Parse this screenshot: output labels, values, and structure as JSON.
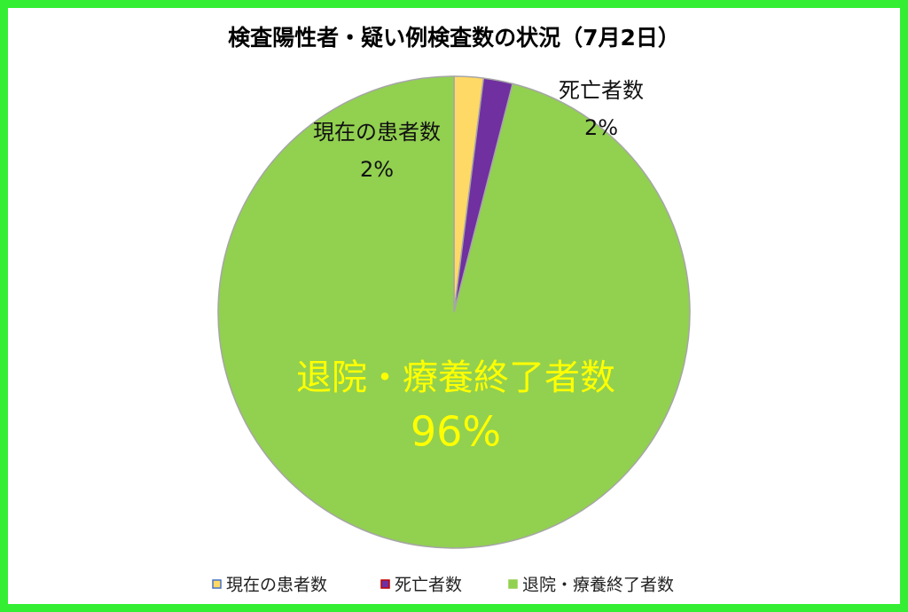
{
  "chart_data": {
    "type": "pie",
    "title": "検査陽性者・疑い例検査数の状況（7月2日）",
    "categories": [
      "現在の患者数",
      "死亡者数",
      "退院・療養終了者数"
    ],
    "values": [
      2,
      2,
      96
    ],
    "value_labels": [
      "2%",
      "2%",
      "96%"
    ],
    "colors": [
      "#ffd966",
      "#7030a0",
      "#92d050"
    ],
    "legend": "bottom"
  }
}
